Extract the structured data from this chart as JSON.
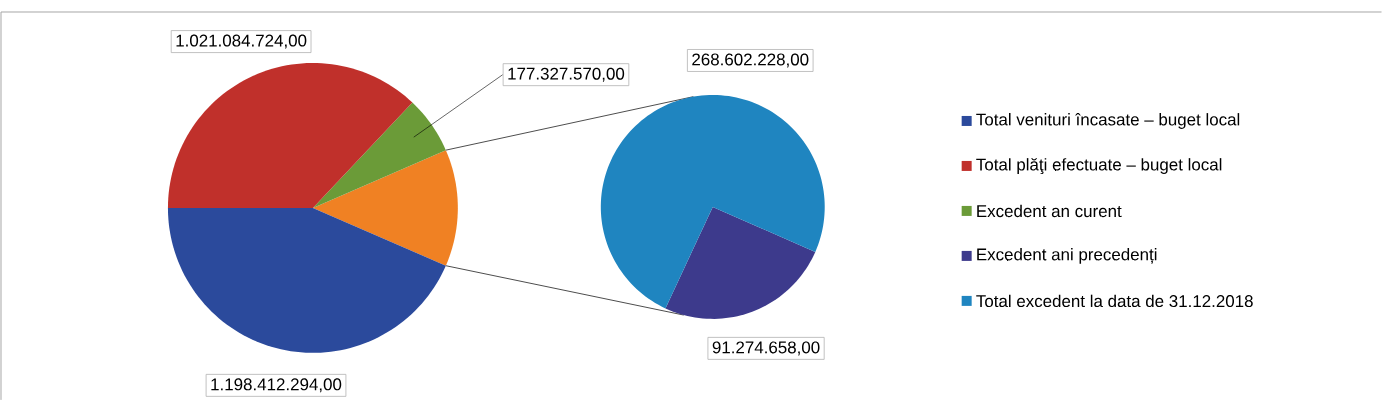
{
  "chart_data": [
    {
      "type": "pie",
      "categories": [
        "Total venituri încasate – buget local",
        "Total plăţi efectuate – buget local",
        "Excedent an curent",
        null
      ],
      "values": [
        1198412294,
        1021084724,
        177327570,
        359876886
      ],
      "colors": [
        "#2b4a9c",
        "#c0302b",
        "#6b9b38",
        "#f08123"
      ],
      "value_labels": [
        "1.198.412.294,00",
        "1.021.084.724,00",
        "177.327.570,00",
        null
      ],
      "legend": "right"
    },
    {
      "type": "pie",
      "categories": [
        "Excedent ani precedenți",
        "Total excedent la data de 31.12.2018"
      ],
      "values": [
        91274658,
        268602228
      ],
      "colors": [
        "#3d3a8c",
        "#1f85c0"
      ],
      "value_labels": [
        "91.274.658,00",
        "268.602.228,00"
      ],
      "legend": "right"
    }
  ]
}
